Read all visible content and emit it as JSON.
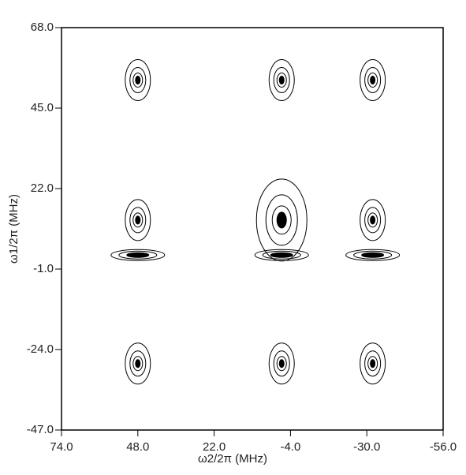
{
  "chart_data": {
    "type": "contour",
    "xlabel": "ω2/2π (MHz)",
    "ylabel": "ω1/2π (MHz)",
    "xlim": [
      74,
      -56
    ],
    "ylim": [
      -47,
      68
    ],
    "xticks": [
      {
        "value": 74,
        "label": "74.0"
      },
      {
        "value": 48,
        "label": "48.0"
      },
      {
        "value": 22,
        "label": "22.0"
      },
      {
        "value": -4,
        "label": "-4.0"
      },
      {
        "value": -30,
        "label": "-30.0"
      },
      {
        "value": -56,
        "label": "-56.0"
      }
    ],
    "yticks": [
      {
        "value": -47,
        "label": "-47.0"
      },
      {
        "value": -24,
        "label": "-24.0"
      },
      {
        "value": -1,
        "label": "-1.0"
      },
      {
        "value": 22,
        "label": "22.0"
      },
      {
        "value": 45,
        "label": "45.0"
      },
      {
        "value": 68,
        "label": "68.0"
      }
    ],
    "peaks": {
      "x": [
        48,
        -1,
        -32,
        48,
        -1,
        -32,
        48,
        -1,
        -32,
        48,
        -1,
        -32
      ],
      "y": [
        53,
        53,
        53,
        13,
        13,
        13,
        3,
        3,
        3,
        -28,
        -28,
        -28
      ]
    },
    "color": "#000000"
  }
}
